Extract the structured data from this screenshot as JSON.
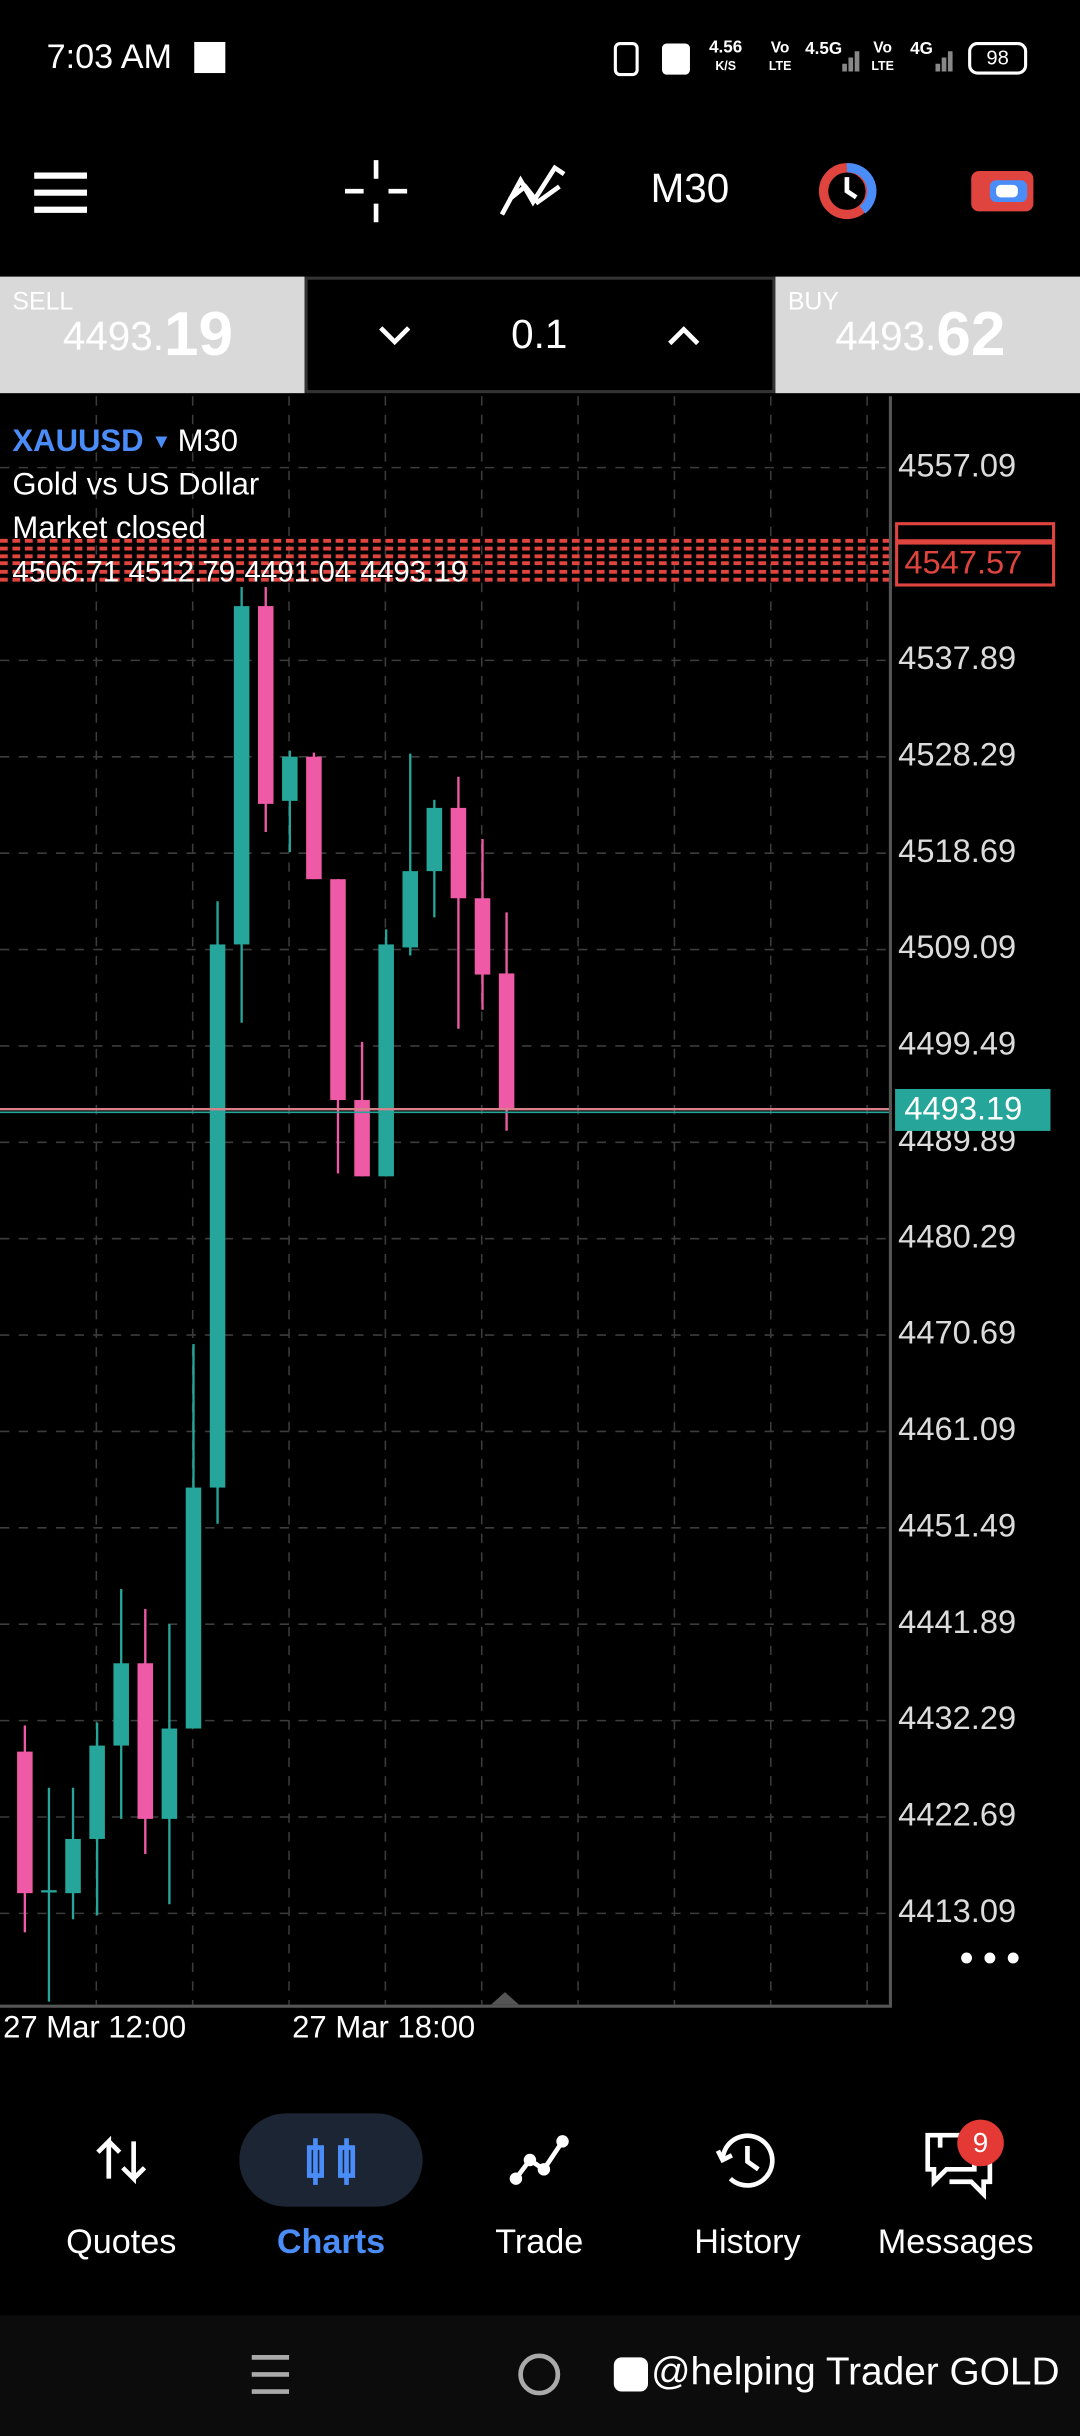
{
  "status_bar": {
    "time": "7:03 AM",
    "speed": "4.56",
    "speed_unit": "K/S",
    "sim1_top": "Vo",
    "sim1_bottom": "LTE",
    "sim1_network": "4.5G",
    "sim2_top": "Vo",
    "sim2_bottom": "LTE",
    "sim2_network": "4G",
    "battery": "98"
  },
  "toolbar": {
    "timeframe": "M30"
  },
  "trade_panel": {
    "sell_label": "SELL",
    "sell_price_main": "4493.",
    "sell_price_big": "19",
    "volume": "0.1",
    "buy_label": "BUY",
    "buy_price_main": "4493.",
    "buy_price_big": "62"
  },
  "chart_data": {
    "type": "candlestick",
    "symbol": "XAUUSD",
    "timeframe": "M30",
    "description": "Gold vs US Dollar",
    "status": "Market closed",
    "categories": [
      "27 Mar 12:00",
      null,
      null,
      null,
      null,
      null,
      null,
      null,
      null,
      null,
      null,
      null,
      "27 Mar 18:00",
      null,
      null,
      null,
      null,
      null,
      null,
      null,
      null
    ],
    "open": [
      4429.2,
      4415.4,
      4415.1,
      4420.5,
      4429.8,
      4438.0,
      4422.5,
      4431.5,
      4455.5,
      4509.6,
      4543.3,
      4523.9,
      4528.3,
      4516.1,
      4494.1,
      4486.5,
      4509.3,
      4516.9,
      4523.2,
      4514.2,
      4506.71
    ],
    "high": [
      4431.8,
      4425.6,
      4425.6,
      4432.1,
      4445.4,
      4443.4,
      4441.9,
      4469.8,
      4513.9,
      4545.2,
      4545.2,
      4528.9,
      4528.7,
      4516.1,
      4499.9,
      4511.1,
      4528.6,
      4524.0,
      4526.3,
      4520.1,
      4512.79
    ],
    "low": [
      4411.2,
      4404.3,
      4412.5,
      4412.9,
      4422.5,
      4419.0,
      4414.0,
      4431.5,
      4451.9,
      4501.8,
      4520.8,
      4518.8,
      4516.1,
      4486.8,
      4486.5,
      4486.5,
      4508.5,
      4512.3,
      4501.2,
      4503.1,
      4491.04
    ],
    "close": [
      4415.1,
      4415.4,
      4420.5,
      4429.8,
      4438.0,
      4422.5,
      4431.5,
      4455.5,
      4509.6,
      4543.3,
      4523.6,
      4528.3,
      4516.1,
      4494.1,
      4486.5,
      4509.6,
      4516.9,
      4523.2,
      4514.2,
      4506.6,
      4493.19
    ],
    "up_color": "#26a69a",
    "down_color": "#ef5aa6",
    "ylim": [
      4404,
      4564.2
    ],
    "yticks": [
      4557.09,
      4537.89,
      4528.29,
      4518.69,
      4509.09,
      4499.49,
      4489.89,
      4480.29,
      4470.69,
      4461.09,
      4451.49,
      4441.89,
      4432.29,
      4422.69,
      4413.09
    ],
    "grid": true,
    "current_price": 4493.19,
    "position_price": 4547.57
  },
  "bottom_nav": {
    "items": [
      "Quotes",
      "Charts",
      "Trade",
      "History",
      "Messages"
    ],
    "active": 1,
    "messages_badge": "9"
  },
  "watermark": "@helping Trader GOLD"
}
